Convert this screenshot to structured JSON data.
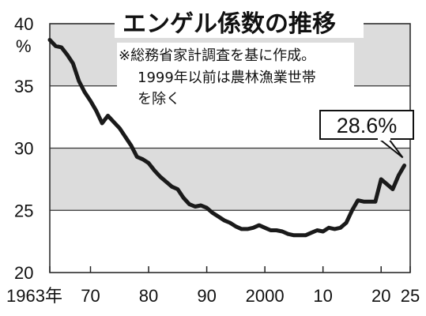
{
  "chart_data": {
    "type": "line",
    "title": "エンゲル係数の推移",
    "notes": [
      "※総務省家計調査を基に作成。",
      "1999年以前は農林漁業世帯",
      "を除く"
    ],
    "yunit": "%",
    "ylim": [
      20,
      40
    ],
    "yticks": [
      20,
      25,
      30,
      35,
      40
    ],
    "xlim": [
      1963,
      2025
    ],
    "xticks": [
      {
        "value": 1963,
        "label": "1963年"
      },
      {
        "value": 1970,
        "label": "70"
      },
      {
        "value": 1980,
        "label": "80"
      },
      {
        "value": 1990,
        "label": "90"
      },
      {
        "value": 2000,
        "label": "2000"
      },
      {
        "value": 2010,
        "label": "10"
      },
      {
        "value": 2020,
        "label": "20"
      },
      {
        "value": 2025,
        "label": "25"
      }
    ],
    "shaded_bands": [
      [
        25,
        30
      ],
      [
        35,
        40
      ]
    ],
    "callout": {
      "text": "28.6%",
      "year": 2024,
      "value": 28.6
    },
    "series": [
      {
        "x": [
          1963,
          1964,
          1965,
          1966,
          1967,
          1968,
          1969,
          1970,
          1971,
          1972,
          1973,
          1974,
          1975,
          1976,
          1977,
          1978,
          1979,
          1980,
          1981,
          1982,
          1983,
          1984,
          1985,
          1986,
          1987,
          1988,
          1989,
          1990,
          1991,
          1992,
          1993,
          1994,
          1995,
          1996,
          1997,
          1998,
          1999,
          2000,
          2001,
          2002,
          2003,
          2004,
          2005,
          2006,
          2007,
          2008,
          2009,
          2010,
          2011,
          2012,
          2013,
          2014,
          2015,
          2016,
          2017,
          2018,
          2019,
          2020,
          2021,
          2022,
          2023,
          2024
        ],
        "y": [
          38.7,
          38.2,
          38.1,
          37.5,
          36.8,
          35.4,
          34.5,
          33.8,
          33.0,
          32.0,
          32.6,
          32.1,
          31.6,
          30.9,
          30.2,
          29.3,
          29.1,
          28.8,
          28.2,
          27.7,
          27.3,
          26.9,
          26.7,
          26.0,
          25.5,
          25.3,
          25.4,
          25.2,
          24.8,
          24.5,
          24.2,
          24.0,
          23.7,
          23.5,
          23.5,
          23.6,
          23.8,
          23.6,
          23.4,
          23.4,
          23.3,
          23.1,
          23.0,
          23.0,
          23.0,
          23.2,
          23.4,
          23.3,
          23.6,
          23.5,
          23.6,
          24.0,
          25.0,
          25.8,
          25.7,
          25.7,
          25.7,
          27.5,
          27.1,
          26.7,
          27.8,
          28.6
        ]
      }
    ]
  }
}
